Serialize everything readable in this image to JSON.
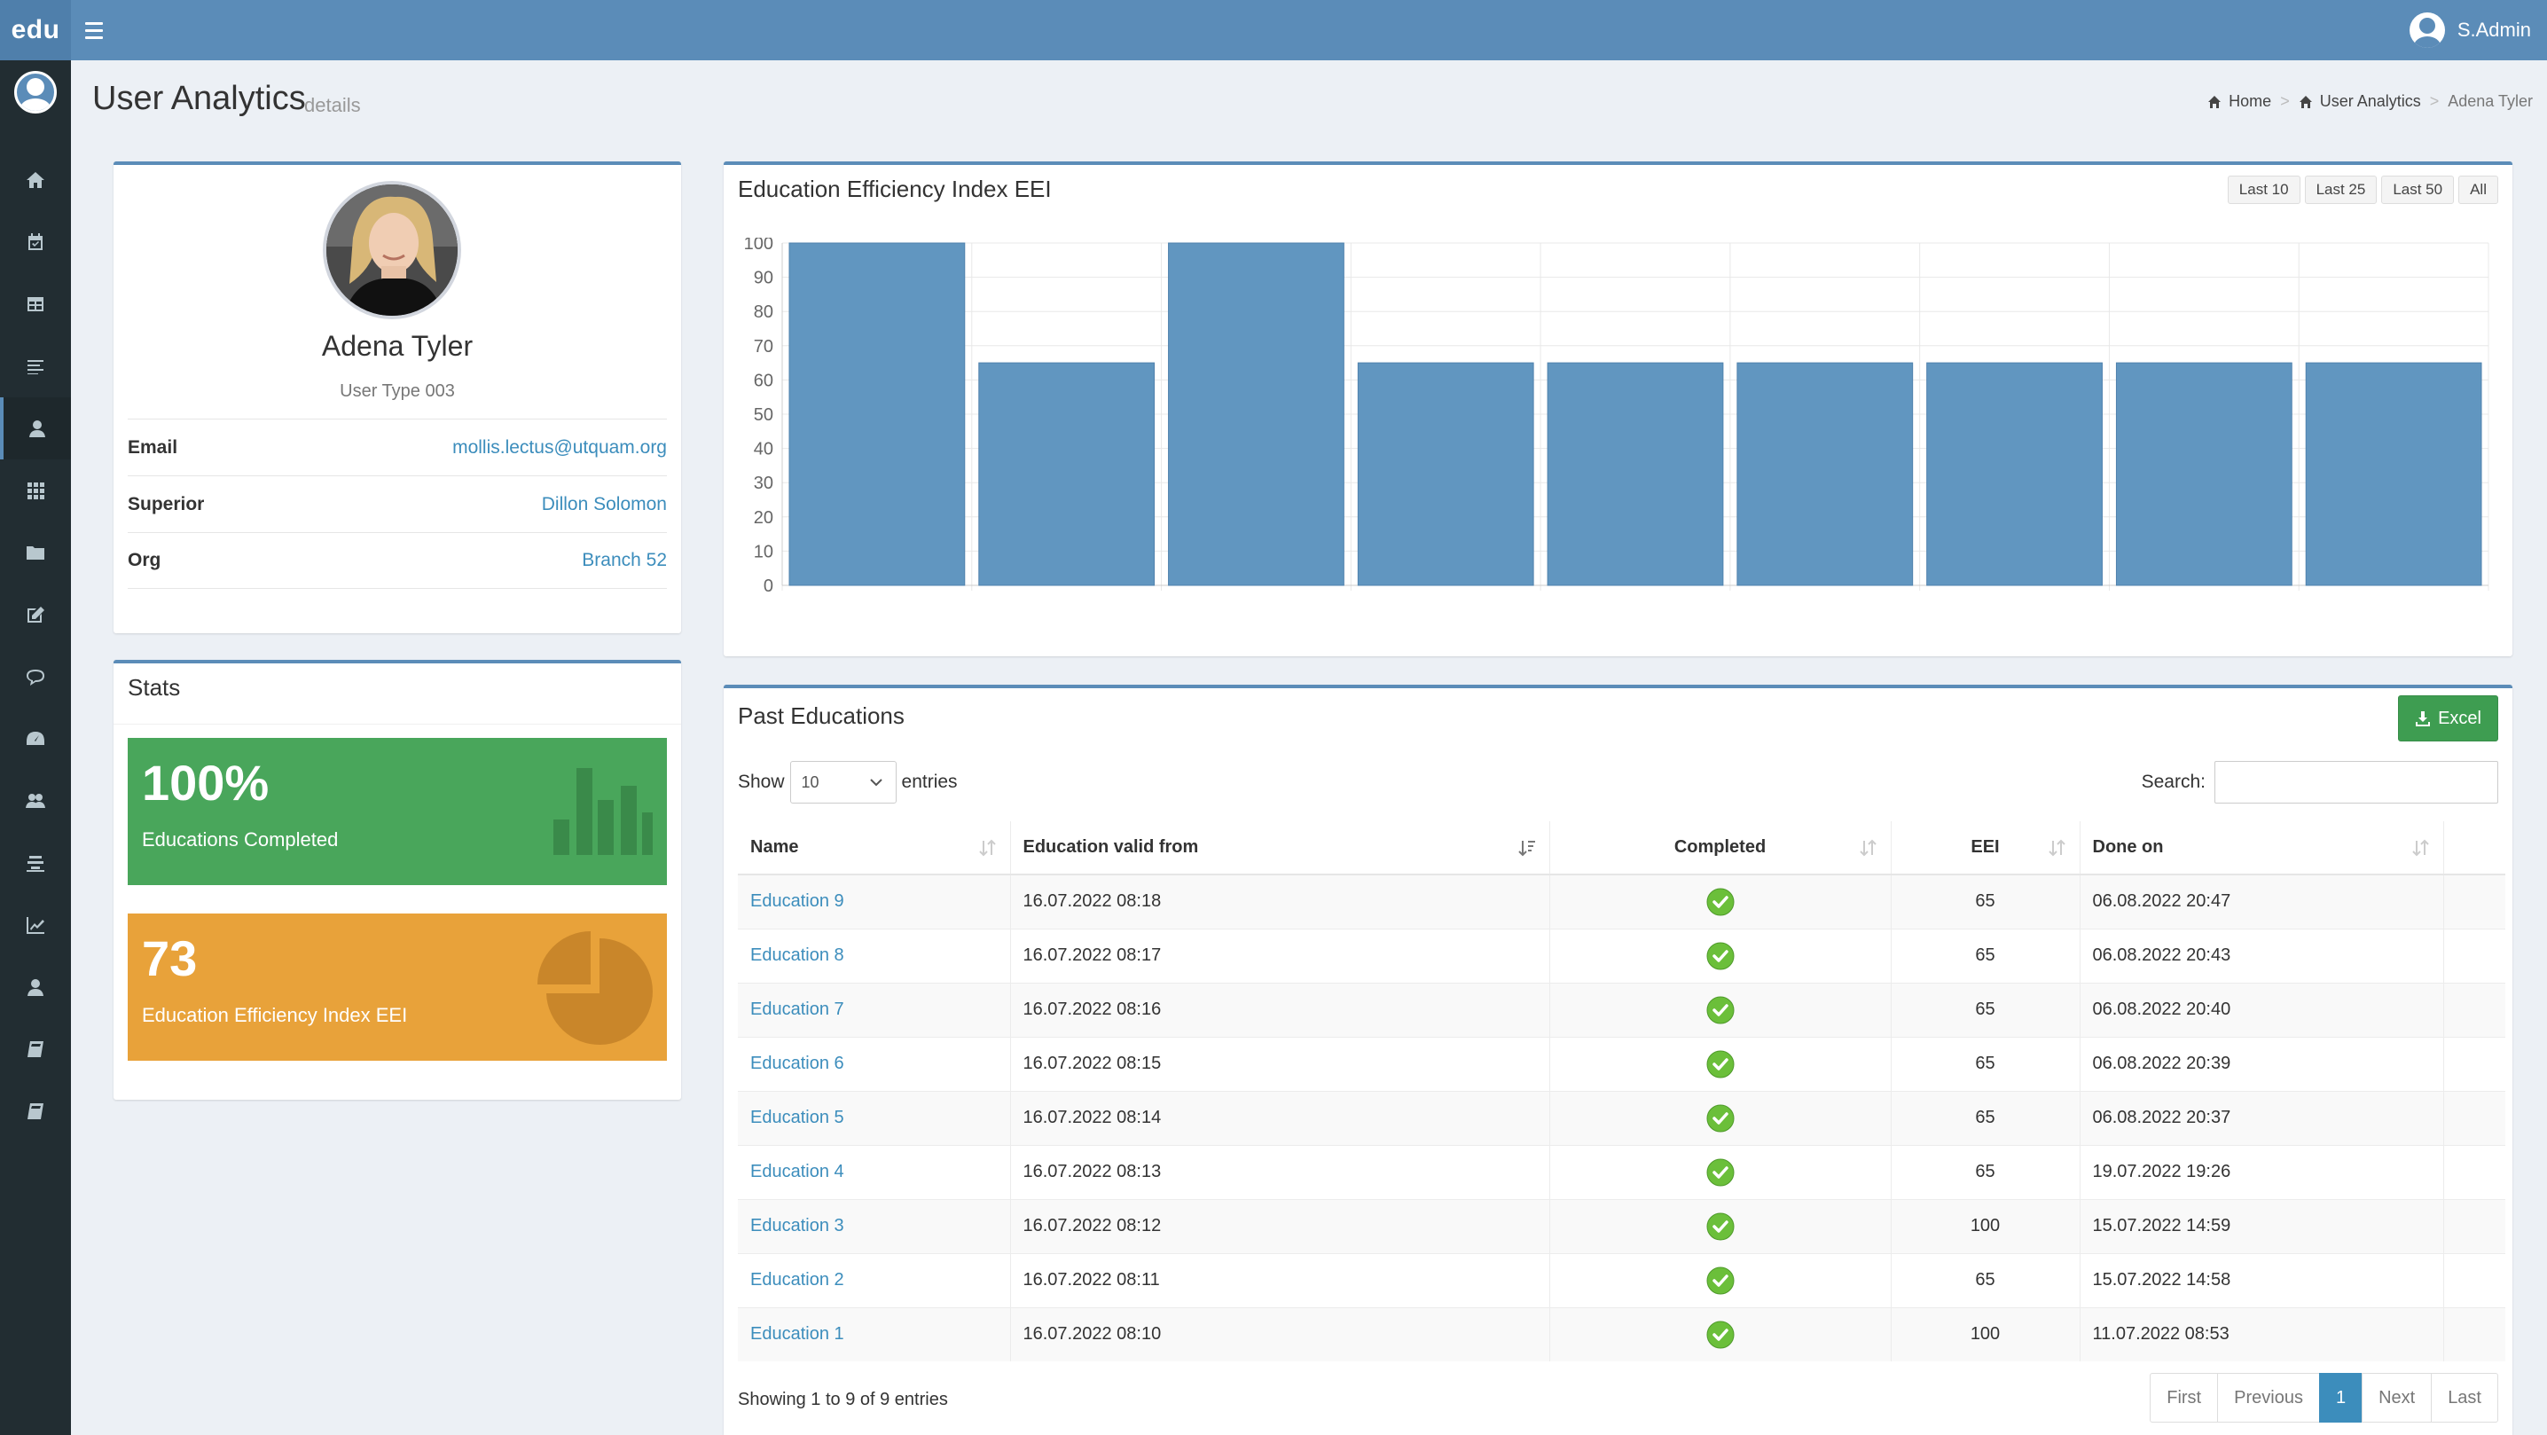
{
  "app": {
    "logo": "edu",
    "user_name": "S.Admin"
  },
  "header": {
    "title": "User Analytics",
    "subtitle": "details"
  },
  "breadcrumb": {
    "home": "Home",
    "section": "User Analytics",
    "current": "Adena Tyler"
  },
  "profile": {
    "name": "Adena Tyler",
    "user_type": "User Type 003",
    "rows": [
      {
        "label": "Email",
        "value": "mollis.lectus@utquam.org"
      },
      {
        "label": "Superior",
        "value": "Dillon Solomon"
      },
      {
        "label": "Org",
        "value": "Branch 52"
      }
    ]
  },
  "stats": {
    "title": "Stats",
    "completed": {
      "value": "100%",
      "label": "Educations Completed",
      "color": "#49a65b"
    },
    "eei": {
      "value": "73",
      "label": "Education Efficiency Index EEI",
      "color": "#e8a23a"
    }
  },
  "chart_section": {
    "title": "Education Efficiency Index EEI",
    "range_buttons": [
      "Last 10",
      "Last 25",
      "Last 50",
      "All"
    ]
  },
  "chart_data": {
    "type": "bar",
    "values": [
      100,
      65,
      100,
      65,
      65,
      65,
      65,
      65,
      65
    ],
    "ylim": [
      0,
      100
    ],
    "yticks": [
      0,
      10,
      20,
      30,
      40,
      50,
      60,
      70,
      80,
      90,
      100
    ],
    "grid": true,
    "bar_color": "#6196c0"
  },
  "table_section": {
    "title": "Past Educations",
    "excel_label": "Excel",
    "show_label": "Show",
    "entries_label": "entries",
    "page_size": "10",
    "search_label": "Search:",
    "columns": [
      "Name",
      "Education valid from",
      "Completed",
      "EEI",
      "Done on"
    ],
    "rows": [
      {
        "name": "Education 9",
        "valid_from": "16.07.2022 08:18",
        "completed": true,
        "eei": "65",
        "done_on": "06.08.2022 20:47"
      },
      {
        "name": "Education 8",
        "valid_from": "16.07.2022 08:17",
        "completed": true,
        "eei": "65",
        "done_on": "06.08.2022 20:43"
      },
      {
        "name": "Education 7",
        "valid_from": "16.07.2022 08:16",
        "completed": true,
        "eei": "65",
        "done_on": "06.08.2022 20:40"
      },
      {
        "name": "Education 6",
        "valid_from": "16.07.2022 08:15",
        "completed": true,
        "eei": "65",
        "done_on": "06.08.2022 20:39"
      },
      {
        "name": "Education 5",
        "valid_from": "16.07.2022 08:14",
        "completed": true,
        "eei": "65",
        "done_on": "06.08.2022 20:37"
      },
      {
        "name": "Education 4",
        "valid_from": "16.07.2022 08:13",
        "completed": true,
        "eei": "65",
        "done_on": "19.07.2022 19:26"
      },
      {
        "name": "Education 3",
        "valid_from": "16.07.2022 08:12",
        "completed": true,
        "eei": "100",
        "done_on": "15.07.2022 14:59"
      },
      {
        "name": "Education 2",
        "valid_from": "16.07.2022 08:11",
        "completed": true,
        "eei": "65",
        "done_on": "15.07.2022 14:58"
      },
      {
        "name": "Education 1",
        "valid_from": "16.07.2022 08:10",
        "completed": true,
        "eei": "100",
        "done_on": "11.07.2022 08:53"
      }
    ],
    "info": "Showing 1 to 9 of 9 entries",
    "pagination": {
      "first": "First",
      "previous": "Previous",
      "current": "1",
      "next": "Next",
      "last": "Last"
    }
  },
  "sidebar": {
    "icons": [
      "home-icon",
      "calendar-check-icon",
      "table-icon",
      "list-icon",
      "user-icon",
      "grid-icon",
      "folder-icon",
      "edit-icon",
      "comment-icon",
      "dashboard-icon",
      "users-icon",
      "layers-icon",
      "line-chart-icon",
      "user-icon",
      "book-icon",
      "book-icon"
    ],
    "active_index": 4
  }
}
